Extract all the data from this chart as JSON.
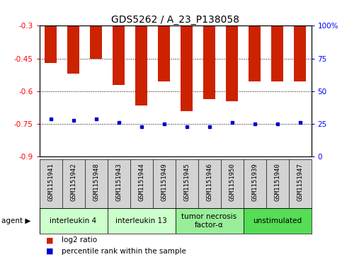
{
  "title": "GDS5262 / A_23_P138058",
  "samples": [
    "GSM1151941",
    "GSM1151942",
    "GSM1151948",
    "GSM1151943",
    "GSM1151944",
    "GSM1151949",
    "GSM1151945",
    "GSM1151946",
    "GSM1151950",
    "GSM1151939",
    "GSM1151940",
    "GSM1151947"
  ],
  "log2_ratio": [
    -0.47,
    -0.52,
    -0.45,
    -0.57,
    -0.665,
    -0.555,
    -0.69,
    -0.635,
    -0.645,
    -0.555,
    -0.555,
    -0.555
  ],
  "percentile_rank": [
    29,
    28,
    29,
    26,
    23,
    25,
    23,
    23,
    26,
    25,
    25,
    26
  ],
  "agents": [
    {
      "label": "interleukin 4",
      "start": 0,
      "end": 3,
      "color": "#ccffcc"
    },
    {
      "label": "interleukin 13",
      "start": 3,
      "end": 6,
      "color": "#ccffcc"
    },
    {
      "label": "tumor necrosis\nfactor-α",
      "start": 6,
      "end": 9,
      "color": "#99ee99"
    },
    {
      "label": "unstimulated",
      "start": 9,
      "end": 12,
      "color": "#55dd55"
    }
  ],
  "ylim": [
    -0.9,
    -0.3
  ],
  "yticks_left": [
    -0.9,
    -0.75,
    -0.6,
    -0.45,
    -0.3
  ],
  "yticks_right": [
    0,
    25,
    50,
    75,
    100
  ],
  "bar_color": "#cc2200",
  "dot_color": "#0000cc",
  "bg_color": "#ffffff",
  "bar_width": 0.55,
  "agent_label_fontsize": 7.5,
  "sample_fontsize": 6.5,
  "title_fontsize": 10,
  "legend_fontsize": 7.5,
  "tick_fontsize": 7.5
}
